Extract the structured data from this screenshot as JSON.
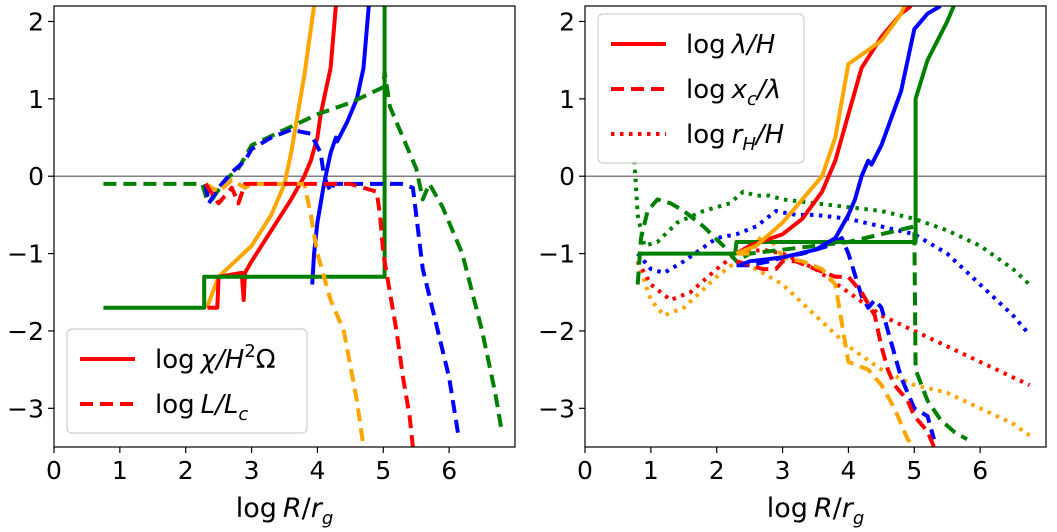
{
  "chart_data": [
    {
      "type": "line",
      "panel": "left",
      "xlabel": "log R/r_g",
      "xlabel_parts": {
        "pre": "log",
        "var": "R",
        "slash": "/",
        "base": "r",
        "sub": "g"
      },
      "xlim": [
        0,
        7.0
      ],
      "ylim": [
        -3.5,
        2.2
      ],
      "xticks": [
        0,
        1,
        2,
        3,
        4,
        5,
        6
      ],
      "xtick_labels": [
        "0",
        "1",
        "2",
        "3",
        "4",
        "5",
        "6"
      ],
      "yticks": [
        -3,
        -2,
        -1,
        0,
        1,
        2
      ],
      "ytick_labels": [
        "−3",
        "−2",
        "−1",
        "0",
        "1",
        "2"
      ],
      "reference_line_y": 0,
      "legend_position": "lower-left",
      "legend": [
        {
          "style": "solid",
          "color": "#ff0000",
          "label": "log  χ/H²Ω",
          "parts": {
            "pre": "log",
            "var": "χ/H",
            "sup": "2",
            "post": "Ω"
          }
        },
        {
          "style": "dashed",
          "color": "#ff0000",
          "label": "log  L/L_c",
          "parts": {
            "pre": "log",
            "var": "L/L",
            "sub": "c"
          }
        }
      ],
      "series": [
        {
          "name": "orange solid",
          "color": "#ffa500",
          "style": "solid",
          "x": [
            2.32,
            2.5,
            3.0,
            3.3,
            3.5,
            3.6,
            3.7,
            3.8,
            3.9,
            3.95
          ],
          "y": [
            -1.7,
            -1.3,
            -0.9,
            -0.5,
            -0.1,
            0.3,
            0.8,
            1.3,
            1.9,
            2.2
          ]
        },
        {
          "name": "red solid",
          "color": "#ff0000",
          "style": "solid",
          "x": [
            2.33,
            2.48,
            2.5,
            2.85,
            2.88,
            2.9,
            3.0,
            3.3,
            3.6,
            3.8,
            3.9,
            4.0,
            4.05,
            4.1,
            4.2,
            4.28
          ],
          "y": [
            -1.7,
            -1.7,
            -1.3,
            -1.25,
            -1.6,
            -1.25,
            -1.1,
            -0.7,
            -0.3,
            0.0,
            0.2,
            0.5,
            0.8,
            1.0,
            1.4,
            2.2
          ]
        },
        {
          "name": "blue solid",
          "color": "#0000ff",
          "style": "solid",
          "x": [
            3.92,
            3.95,
            4.0,
            4.1,
            4.2,
            4.28,
            4.3,
            4.45,
            4.6,
            4.7,
            4.75,
            4.78
          ],
          "y": [
            -1.4,
            -1.0,
            -0.6,
            -0.1,
            0.3,
            0.5,
            0.45,
            0.7,
            1.0,
            1.4,
            1.9,
            2.2
          ]
        },
        {
          "name": "green solid",
          "color": "#008000",
          "style": "solid",
          "x": [
            0.75,
            2.28,
            2.28,
            5.02,
            5.02
          ],
          "y": [
            -1.7,
            -1.7,
            -1.3,
            -1.3,
            2.2
          ]
        },
        {
          "name": "green dashed",
          "color": "#008000",
          "style": "dashed",
          "x": [
            0.75,
            2.25,
            2.32,
            2.4,
            2.6,
            2.8,
            3.0,
            3.5,
            4.0,
            4.5,
            5.0,
            5.02,
            5.1,
            5.3,
            5.5,
            5.6,
            5.7,
            5.9,
            6.2,
            6.5,
            6.7,
            6.8
          ],
          "y": [
            -0.1,
            -0.1,
            -0.3,
            -0.3,
            -0.05,
            0.1,
            0.4,
            0.6,
            0.8,
            0.95,
            1.15,
            1.35,
            0.9,
            0.5,
            0.1,
            -0.3,
            -0.1,
            -0.4,
            -1.0,
            -2.0,
            -2.8,
            -3.3
          ]
        },
        {
          "name": "blue dashed",
          "color": "#0000ff",
          "style": "dashed",
          "x": [
            2.3,
            2.35,
            2.5,
            2.7,
            2.9,
            3.0,
            3.3,
            3.6,
            3.9,
            4.05,
            4.1,
            4.2,
            4.25,
            4.4,
            4.6,
            4.9,
            5.2,
            5.3,
            5.45,
            5.5,
            5.6,
            5.8,
            6.0,
            6.15
          ],
          "y": [
            -0.1,
            -0.35,
            -0.15,
            0.05,
            0.2,
            0.35,
            0.5,
            0.6,
            0.55,
            0.3,
            0.0,
            -0.2,
            -0.1,
            -0.1,
            -0.1,
            -0.1,
            -0.1,
            -0.1,
            -0.15,
            -0.5,
            -1.2,
            -1.9,
            -2.6,
            -3.4
          ]
        },
        {
          "name": "orange dashed",
          "color": "#ffa500",
          "style": "dashed",
          "x": [
            2.3,
            2.5,
            2.7,
            2.8,
            2.9,
            3.0,
            3.5,
            3.8,
            3.85,
            3.9,
            4.0,
            4.2,
            4.4,
            4.6,
            4.7
          ],
          "y": [
            -0.1,
            -0.2,
            -0.05,
            -0.1,
            -0.15,
            -0.1,
            -0.1,
            -0.1,
            -0.3,
            -0.5,
            -1.0,
            -1.6,
            -2.0,
            -2.9,
            -3.5
          ]
        },
        {
          "name": "red dashed",
          "color": "#ff0000",
          "style": "dashed",
          "x": [
            2.3,
            2.5,
            2.7,
            2.8,
            2.9,
            3.0,
            3.5,
            4.5,
            4.9,
            4.95,
            5.0,
            5.1,
            5.2,
            5.3,
            5.4,
            5.45
          ],
          "y": [
            -0.1,
            -0.35,
            -0.15,
            -0.35,
            -0.1,
            -0.1,
            -0.1,
            -0.1,
            -0.2,
            -0.5,
            -1.0,
            -1.5,
            -2.0,
            -2.6,
            -3.1,
            -3.5
          ]
        }
      ]
    },
    {
      "type": "line",
      "panel": "right",
      "xlabel": "log R/r_g",
      "xlabel_parts": {
        "pre": "log",
        "var": "R",
        "slash": "/",
        "base": "r",
        "sub": "g"
      },
      "xlim": [
        0,
        7.0
      ],
      "ylim": [
        -3.5,
        2.2
      ],
      "xticks": [
        0,
        1,
        2,
        3,
        4,
        5,
        6
      ],
      "xtick_labels": [
        "0",
        "1",
        "2",
        "3",
        "4",
        "5",
        "6"
      ],
      "yticks": [
        -3,
        -2,
        -1,
        0,
        1,
        2
      ],
      "ytick_labels": [
        "−3",
        "−2",
        "−1",
        "0",
        "1",
        "2"
      ],
      "reference_line_y": 0,
      "legend_position": "upper-left",
      "legend": [
        {
          "style": "solid",
          "color": "#ff0000",
          "label": "log λ/H",
          "parts": {
            "pre": "log",
            "var": "λ/H"
          }
        },
        {
          "style": "dashed",
          "color": "#ff0000",
          "label": "log x_c/λ",
          "parts": {
            "pre": "log",
            "var": "x",
            "sub": "c",
            "post": "/λ"
          }
        },
        {
          "style": "dotted",
          "color": "#ff0000",
          "label": "log r_H/H",
          "parts": {
            "pre": "log",
            "var": "r",
            "sub": "H",
            "post": "/H"
          }
        }
      ],
      "series": [
        {
          "name": "orange dotted",
          "color": "#ffa500",
          "style": "dotted",
          "x": [
            0.8,
            1.0,
            1.2,
            1.5,
            2.0,
            2.3,
            2.6,
            3.0,
            3.5,
            4.0,
            4.5,
            5.0,
            5.5,
            6.0,
            6.5,
            6.75
          ],
          "y": [
            -1.1,
            -1.6,
            -1.8,
            -1.7,
            -1.3,
            -1.1,
            -1.2,
            -1.4,
            -1.8,
            -2.2,
            -2.5,
            -2.7,
            -2.8,
            -3.0,
            -3.2,
            -3.35
          ]
        },
        {
          "name": "red dotted",
          "color": "#ff0000",
          "style": "dotted",
          "x": [
            0.8,
            1.0,
            1.3,
            1.6,
            2.0,
            2.3,
            2.7,
            3.0,
            3.5,
            4.0,
            4.5,
            5.0,
            5.5,
            6.0,
            6.5,
            6.75
          ],
          "y": [
            -1.1,
            -1.4,
            -1.6,
            -1.5,
            -1.2,
            -1.0,
            -0.95,
            -1.0,
            -1.2,
            -1.5,
            -1.8,
            -2.0,
            -2.2,
            -2.4,
            -2.6,
            -2.7
          ]
        },
        {
          "name": "blue dotted",
          "color": "#0000ff",
          "style": "dotted",
          "x": [
            0.8,
            1.0,
            1.2,
            1.5,
            2.0,
            2.3,
            2.6,
            2.9,
            3.2,
            3.5,
            4.0,
            4.5,
            5.0,
            5.5,
            6.0,
            6.5,
            6.75
          ],
          "y": [
            -1.0,
            -1.2,
            -1.25,
            -1.1,
            -0.8,
            -0.75,
            -0.65,
            -0.45,
            -0.5,
            -0.5,
            -0.55,
            -0.65,
            -0.75,
            -1.0,
            -1.4,
            -1.8,
            -2.05
          ]
        },
        {
          "name": "green dotted",
          "color": "#008000",
          "style": "dotted",
          "x": [
            0.75,
            0.8,
            0.9,
            1.1,
            1.4,
            1.8,
            2.2,
            2.4,
            2.6,
            2.8,
            3.0,
            3.5,
            4.0,
            4.5,
            5.0,
            5.5,
            6.0,
            6.5,
            6.75
          ],
          "y": [
            0.2,
            -0.5,
            -0.9,
            -0.85,
            -0.6,
            -0.45,
            -0.35,
            -0.2,
            -0.25,
            -0.25,
            -0.3,
            -0.35,
            -0.4,
            -0.45,
            -0.55,
            -0.7,
            -0.9,
            -1.2,
            -1.4
          ]
        },
        {
          "name": "green dashed",
          "color": "#008000",
          "style": "dashed",
          "x": [
            0.8,
            0.85,
            0.95,
            1.1,
            1.3,
            1.5,
            1.8,
            2.1,
            2.3,
            2.5,
            3.0,
            3.5,
            4.0,
            4.5,
            5.0,
            5.02,
            5.2,
            5.4,
            5.6,
            5.8
          ],
          "y": [
            -1.4,
            -0.8,
            -0.45,
            -0.3,
            -0.35,
            -0.45,
            -0.65,
            -0.9,
            -1.1,
            -1.0,
            -0.95,
            -0.9,
            -0.85,
            -0.75,
            -0.65,
            -2.5,
            -2.9,
            -3.15,
            -3.3,
            -3.4
          ]
        },
        {
          "name": "blue dashed",
          "color": "#0000ff",
          "style": "dashed",
          "x": [
            2.3,
            2.5,
            2.8,
            3.0,
            3.3,
            3.5,
            3.7,
            3.9,
            4.0,
            4.2,
            4.3,
            4.4,
            4.5,
            4.6,
            4.7,
            4.8,
            4.9,
            5.0,
            5.1,
            5.2,
            5.3
          ],
          "y": [
            -1.15,
            -1.15,
            -1.1,
            -1.05,
            -1.0,
            -0.95,
            -0.9,
            -0.8,
            -1.0,
            -1.55,
            -1.7,
            -1.6,
            -1.7,
            -2.0,
            -2.3,
            -2.6,
            -2.8,
            -3.0,
            -3.05,
            -3.1,
            -3.4
          ]
        },
        {
          "name": "red dashed",
          "color": "#ff0000",
          "style": "dashed",
          "x": [
            2.3,
            2.5,
            2.7,
            2.9,
            3.0,
            3.2,
            3.5,
            3.8,
            4.0,
            4.2,
            4.4,
            4.5,
            4.6,
            4.7,
            4.9,
            5.0,
            5.2,
            5.3
          ],
          "y": [
            -1.1,
            -1.15,
            -1.2,
            -1.2,
            -1.1,
            -1.1,
            -1.2,
            -1.3,
            -1.3,
            -1.5,
            -1.8,
            -2.2,
            -2.5,
            -2.7,
            -2.9,
            -3.1,
            -3.3,
            -3.5
          ]
        },
        {
          "name": "orange dashed",
          "color": "#ffa500",
          "style": "dashed",
          "x": [
            2.3,
            2.5,
            2.7,
            2.9,
            3.0,
            3.3,
            3.6,
            3.8,
            4.0,
            4.3,
            4.5,
            4.7,
            4.8,
            4.9,
            5.0
          ],
          "y": [
            -1.0,
            -1.0,
            -0.75,
            -0.9,
            -1.05,
            -1.1,
            -1.2,
            -1.4,
            -2.4,
            -2.5,
            -2.7,
            -3.0,
            -3.2,
            -3.4,
            -3.5
          ]
        },
        {
          "name": "green solid",
          "color": "#008000",
          "style": "solid",
          "x": [
            0.8,
            2.28,
            2.3,
            5.02,
            5.02,
            5.2,
            5.5,
            5.6
          ],
          "y": [
            -1.0,
            -1.0,
            -0.85,
            -0.85,
            1.0,
            1.5,
            2.0,
            2.2
          ]
        },
        {
          "name": "blue solid",
          "color": "#0000ff",
          "style": "solid",
          "x": [
            2.35,
            2.5,
            3.0,
            3.5,
            3.8,
            4.0,
            4.1,
            4.2,
            4.3,
            4.35,
            4.5,
            4.8,
            5.0,
            5.2,
            5.4
          ],
          "y": [
            -1.15,
            -1.1,
            -1.05,
            -0.95,
            -0.8,
            -0.5,
            -0.3,
            0.0,
            0.2,
            0.15,
            0.4,
            1.1,
            1.9,
            2.1,
            2.2
          ]
        },
        {
          "name": "red solid",
          "color": "#ff0000",
          "style": "solid",
          "x": [
            2.3,
            2.5,
            3.0,
            3.3,
            3.6,
            3.8,
            4.0,
            4.2,
            4.5,
            4.8,
            4.95
          ],
          "y": [
            -1.0,
            -0.9,
            -0.75,
            -0.55,
            -0.2,
            0.2,
            0.8,
            1.4,
            1.8,
            2.1,
            2.2
          ]
        },
        {
          "name": "orange solid",
          "color": "#ffa500",
          "style": "solid",
          "x": [
            2.3,
            2.6,
            3.0,
            3.3,
            3.6,
            3.8,
            4.0,
            4.5,
            4.8,
            4.85
          ],
          "y": [
            -1.0,
            -0.9,
            -0.6,
            -0.3,
            0.0,
            0.5,
            1.45,
            1.75,
            2.1,
            2.2
          ]
        }
      ]
    }
  ]
}
